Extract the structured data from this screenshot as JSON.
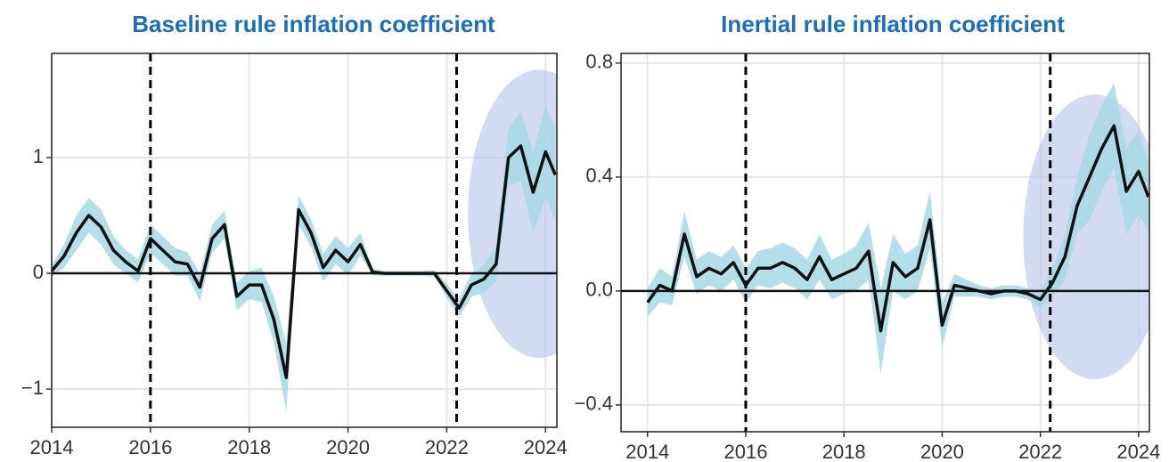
{
  "chart_data": [
    {
      "type": "line",
      "title": "Baseline rule inflation coefficient",
      "x": [
        2014,
        2014.25,
        2014.5,
        2014.75,
        2015,
        2015.25,
        2015.5,
        2015.75,
        2016,
        2016.25,
        2016.5,
        2016.75,
        2017,
        2017.25,
        2017.5,
        2017.75,
        2018,
        2018.25,
        2018.5,
        2018.75,
        2019,
        2019.25,
        2019.5,
        2019.75,
        2020,
        2020.25,
        2020.5,
        2020.75,
        2021,
        2021.25,
        2021.5,
        2021.75,
        2022,
        2022.25,
        2022.5,
        2022.75,
        2023,
        2023.25,
        2023.5,
        2023.75,
        2024,
        2024.2
      ],
      "values": [
        0.02,
        0.15,
        0.35,
        0.5,
        0.4,
        0.2,
        0.1,
        0.02,
        0.3,
        0.2,
        0.1,
        0.08,
        -0.12,
        0.3,
        0.42,
        -0.2,
        -0.1,
        -0.1,
        -0.4,
        -0.9,
        0.55,
        0.35,
        0.05,
        0.2,
        0.1,
        0.25,
        0.01,
        0,
        0,
        0,
        0,
        0,
        -0.15,
        -0.3,
        -0.1,
        -0.05,
        0.08,
        1.0,
        1.1,
        0.7,
        1.05,
        0.85
      ],
      "lower": [
        -0.03,
        0.05,
        0.2,
        0.35,
        0.25,
        0.08,
        0,
        -0.08,
        0.18,
        0.08,
        -0.02,
        -0.02,
        -0.24,
        0.18,
        0.3,
        -0.32,
        -0.22,
        -0.25,
        -0.6,
        -1.2,
        0.43,
        0.23,
        -0.07,
        0.08,
        -0.02,
        0.15,
        -0.02,
        -0.02,
        -0.02,
        -0.02,
        -0.02,
        -0.03,
        -0.21,
        -0.38,
        -0.2,
        -0.17,
        -0.07,
        0.75,
        0.8,
        0.35,
        0.65,
        0.45
      ],
      "upper": [
        0.07,
        0.25,
        0.5,
        0.65,
        0.55,
        0.32,
        0.2,
        0.12,
        0.42,
        0.32,
        0.22,
        0.18,
        0,
        0.42,
        0.54,
        -0.08,
        0.02,
        0.05,
        -0.2,
        -0.6,
        0.67,
        0.47,
        0.17,
        0.32,
        0.22,
        0.35,
        0.04,
        0.02,
        0.02,
        0.02,
        0.02,
        0.03,
        -0.09,
        -0.22,
        0,
        0.07,
        0.23,
        1.25,
        1.4,
        1.05,
        1.45,
        1.25
      ],
      "color": "#111111",
      "band_color": "#a8d8e8",
      "xlim": [
        2014,
        2024.23
      ],
      "xticks": [
        2014,
        2016,
        2018,
        2020,
        2022,
        2024
      ],
      "ylim": [
        -1.33,
        1.9
      ],
      "yticks": [
        {
          "value": -1,
          "label": "−1"
        },
        0,
        1
      ],
      "hline": 0,
      "vlines": [
        2016,
        2022.2
      ],
      "highlight": {
        "x": [
          2022.43,
          2025.31
        ],
        "y": [
          -0.73,
          1.76
        ],
        "color": "#b4c3ea"
      },
      "grid": true
    },
    {
      "type": "line",
      "title": "Inertial rule inflation coefficient",
      "x": [
        2014,
        2014.25,
        2014.5,
        2014.75,
        2015,
        2015.25,
        2015.5,
        2015.75,
        2016,
        2016.25,
        2016.5,
        2016.75,
        2017,
        2017.25,
        2017.5,
        2017.75,
        2018,
        2018.25,
        2018.5,
        2018.75,
        2019,
        2019.25,
        2019.5,
        2019.75,
        2020,
        2020.25,
        2020.5,
        2020.75,
        2021,
        2021.25,
        2021.5,
        2021.75,
        2022,
        2022.25,
        2022.5,
        2022.75,
        2023,
        2023.25,
        2023.5,
        2023.75,
        2024,
        2024.2
      ],
      "values": [
        -0.04,
        0.02,
        0,
        0.2,
        0.05,
        0.08,
        0.06,
        0.1,
        0.02,
        0.08,
        0.08,
        0.1,
        0.08,
        0.04,
        0.12,
        0.04,
        0.06,
        0.08,
        0.14,
        -0.14,
        0.1,
        0.05,
        0.08,
        0.25,
        -0.12,
        0.02,
        0.01,
        0,
        -0.01,
        0,
        0,
        -0.01,
        -0.03,
        0.03,
        0.12,
        0.3,
        0.4,
        0.5,
        0.58,
        0.35,
        0.42,
        0.33
      ],
      "lower": [
        -0.09,
        -0.04,
        -0.05,
        0.12,
        -0.01,
        0.02,
        0,
        0.04,
        -0.04,
        0.02,
        0.01,
        0.03,
        0.01,
        -0.03,
        0.04,
        -0.03,
        -0.01,
        0,
        0.04,
        -0.29,
        0,
        -0.03,
        0,
        0.15,
        -0.2,
        -0.02,
        -0.02,
        -0.02,
        -0.03,
        -0.02,
        -0.02,
        -0.03,
        -0.06,
        -0.02,
        0.04,
        0.2,
        0.25,
        0.35,
        0.43,
        0.2,
        0.27,
        0.21
      ],
      "upper": [
        0.01,
        0.08,
        0.05,
        0.28,
        0.11,
        0.14,
        0.12,
        0.16,
        0.08,
        0.14,
        0.15,
        0.17,
        0.15,
        0.11,
        0.2,
        0.11,
        0.13,
        0.16,
        0.24,
        0.01,
        0.2,
        0.13,
        0.16,
        0.35,
        -0.04,
        0.06,
        0.04,
        0.02,
        0.01,
        0.02,
        0.02,
        0.01,
        0,
        0.08,
        0.2,
        0.4,
        0.55,
        0.65,
        0.73,
        0.5,
        0.57,
        0.45
      ],
      "color": "#111111",
      "band_color": "#a8d8e8",
      "xlim": [
        2013.46,
        2024.22
      ],
      "xticks": [
        2014,
        2016,
        2018,
        2020,
        2022,
        2024
      ],
      "ylim": [
        -0.494,
        0.834
      ],
      "yticks": [
        {
          "value": -0.4,
          "label": "−0.4"
        },
        {
          "value": 0,
          "label": "0.0"
        },
        0.4,
        0.8
      ],
      "hline": 0,
      "vlines": [
        2016,
        2022.2
      ],
      "highlight": {
        "x": [
          2021.65,
          2024.55
        ],
        "y": [
          -0.31,
          0.69
        ],
        "color": "#b4c3ea"
      },
      "grid": true
    }
  ]
}
